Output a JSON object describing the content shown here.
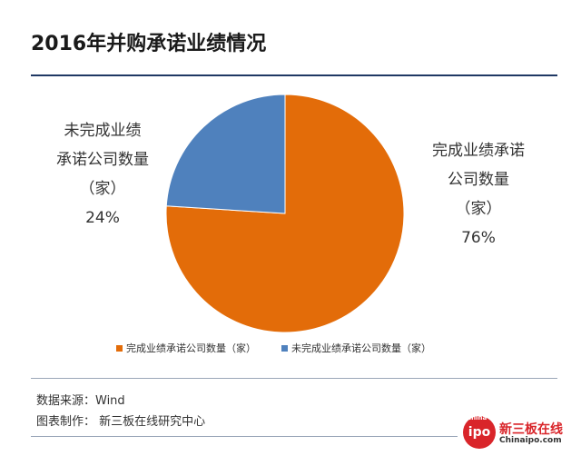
{
  "title": "2016年并购承诺业绩情况",
  "colors": {
    "completed": "#E36C09",
    "not_completed": "#4F81BD",
    "rule": "#1F3864"
  },
  "labels": {
    "not_completed": {
      "line1": "未完成业绩",
      "line2": "承诺公司数量",
      "line3": "（家）",
      "pct": "24%"
    },
    "completed": {
      "line1": "完成业绩承诺",
      "line2": "公司数量",
      "line3": "（家）",
      "pct": "76%"
    }
  },
  "legend": {
    "completed": "完成业绩承诺公司数量（家）",
    "not_completed": "未完成业绩承诺公司数量（家）"
  },
  "footer": {
    "source": "数据来源：Wind",
    "maker": "图表制作：  新三板在线研究中心"
  },
  "logo": {
    "circle_text": "ipo",
    "small_text": "China",
    "cn": "新三板在线",
    "en": "Chinaipo.com"
  },
  "chart_data": {
    "type": "pie",
    "title": "2016年并购承诺业绩情况",
    "categories": [
      "完成业绩承诺公司数量（家）",
      "未完成业绩承诺公司数量（家）"
    ],
    "values": [
      76,
      24
    ],
    "legend_position": "bottom"
  }
}
